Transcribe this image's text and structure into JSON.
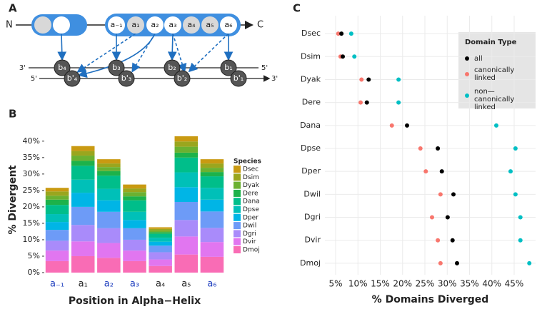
{
  "diagram": {
    "label": "A",
    "n_term": "N",
    "c_term": "C",
    "a_sites": [
      "a₋₁",
      "a₁",
      "a₂",
      "a₃",
      "a₄",
      "a₅",
      "a₆"
    ],
    "b_sites": [
      "b₄",
      "b₃",
      "b₂",
      "b₁"
    ],
    "b_prime_sites": [
      "b'₄",
      "b'₃",
      "b'₂",
      "b'₁"
    ],
    "strand_ends": [
      "3'",
      "5'",
      "5'",
      "3'"
    ]
  },
  "chart_data": [
    {
      "type": "bar",
      "stacked": true,
      "label": "B",
      "categories": [
        "a₋₁",
        "a₁",
        "a₂",
        "a₃",
        "a₄",
        "a₅",
        "a₆"
      ],
      "category_label_colors": [
        "#1f3fbf",
        "#222222",
        "#1f3fbf",
        "#1f3fbf",
        "#222222",
        "#222222",
        "#1f3fbf"
      ],
      "xlabel": "Position in Alpha−Helix",
      "ylabel": "% Divergent",
      "legend_title": "Species",
      "ylim": [
        0,
        44.3
      ],
      "yticks": [
        {
          "value": 0,
          "label": "0%"
        },
        {
          "value": 5,
          "label": "5%"
        },
        {
          "value": 10,
          "label": "10%"
        },
        {
          "value": 15,
          "label": "15%"
        },
        {
          "value": 20,
          "label": "20%"
        },
        {
          "value": 25,
          "label": "25%"
        },
        {
          "value": 30,
          "label": "30%"
        },
        {
          "value": 35,
          "label": "35%"
        },
        {
          "value": 40,
          "label": "40%"
        }
      ],
      "series": [
        {
          "name": "Dsec",
          "color": "#C99A12",
          "values": [
            1.1,
            1.5,
            1.3,
            1.2,
            0.5,
            1.6,
            1.3
          ]
        },
        {
          "name": "Dsim",
          "color": "#9AA61E",
          "values": [
            1.3,
            1.4,
            1.1,
            1.1,
            0.5,
            1.6,
            1.3
          ]
        },
        {
          "name": "Dyak",
          "color": "#6BB131",
          "values": [
            1.2,
            1.6,
            1.2,
            1.3,
            0.5,
            1.8,
            1.3
          ]
        },
        {
          "name": "Dere",
          "color": "#1DB24A",
          "values": [
            1.6,
            1.5,
            1.4,
            1.2,
            0.5,
            1.5,
            1.3
          ]
        },
        {
          "name": "Dana",
          "color": "#00BE8A",
          "values": [
            2.8,
            4.2,
            4,
            3.5,
            1.2,
            4.5,
            3.5
          ]
        },
        {
          "name": "Dpse",
          "color": "#00C0B8",
          "values": [
            2.4,
            4,
            3.5,
            2.5,
            1.2,
            4.5,
            3.6
          ]
        },
        {
          "name": "Dper",
          "color": "#00B5E6",
          "values": [
            2.4,
            4.3,
            3.5,
            2.5,
            1.2,
            4.5,
            3.6
          ]
        },
        {
          "name": "Dwil",
          "color": "#6D9BF7",
          "values": [
            3.3,
            5.5,
            5,
            3.5,
            2,
            5.5,
            5
          ]
        },
        {
          "name": "Dgri",
          "color": "#A98BFA",
          "values": [
            3,
            5,
            4.5,
            3.3,
            2.2,
            5,
            4.3
          ]
        },
        {
          "name": "Dvir",
          "color": "#E176F0",
          "values": [
            3.2,
            4.5,
            4.5,
            3.2,
            2,
            5.5,
            4.5
          ]
        },
        {
          "name": "Dmoj",
          "color": "#F96CB5",
          "values": [
            3.5,
            5,
            4.5,
            3.5,
            2,
            5.5,
            4.8
          ]
        }
      ]
    },
    {
      "type": "dot",
      "label": "C",
      "categories": [
        "Dsec",
        "Dsim",
        "Dyak",
        "Dere",
        "Dana",
        "Dpse",
        "Dper",
        "Dwil",
        "Dgri",
        "Dvir",
        "Dmoj"
      ],
      "xlabel": "% Domains Diverged",
      "legend_title": "Domain Type",
      "grid": true,
      "xlim": [
        2.6,
        49.8
      ],
      "xticks": [
        {
          "value": 5,
          "label": "5%"
        },
        {
          "value": 10,
          "label": "10%"
        },
        {
          "value": 15,
          "label": "15%"
        },
        {
          "value": 20,
          "label": "20%"
        },
        {
          "value": 25,
          "label": "25%"
        },
        {
          "value": 30,
          "label": "30%"
        },
        {
          "value": 35,
          "label": "35%"
        },
        {
          "value": 40,
          "label": "40%"
        },
        {
          "value": 45,
          "label": "45%"
        }
      ],
      "series": [
        {
          "name": "all",
          "color": "#000000",
          "values": [
            6.3,
            6.6,
            12.4,
            12.0,
            21.0,
            27.9,
            28.8,
            31.4,
            30.1,
            31.2,
            32.2
          ]
        },
        {
          "name": "canonically linked",
          "color": "#F8766D",
          "values": [
            5.6,
            6.1,
            10.8,
            10.6,
            17.6,
            24.0,
            25.2,
            28.5,
            26.6,
            27.9,
            28.5
          ]
        },
        {
          "name": "non—canonically linked",
          "color": "#00BFC4",
          "values": [
            8.5,
            9.2,
            19.1,
            19.1,
            41.0,
            45.3,
            44.2,
            45.3,
            46.4,
            46.4,
            48.4
          ]
        }
      ]
    }
  ]
}
